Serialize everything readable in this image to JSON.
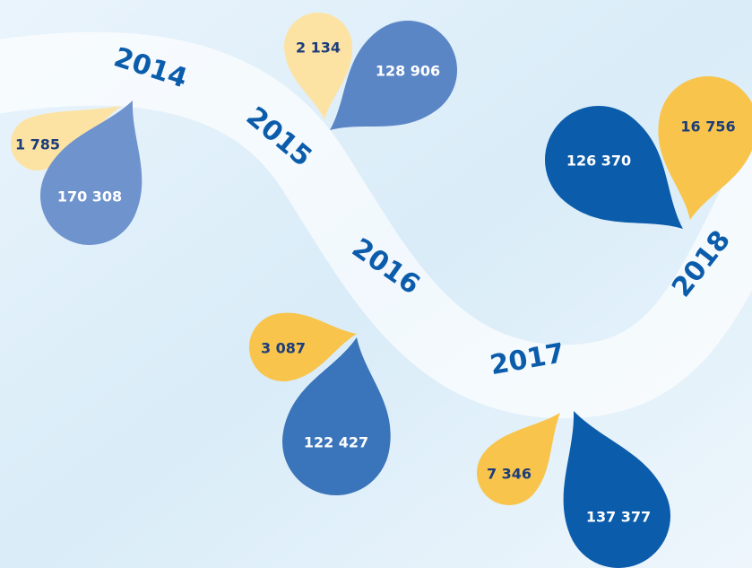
{
  "timeline": [
    {
      "year": "2014",
      "small": "1 785",
      "large": "170 308"
    },
    {
      "year": "2015",
      "small": "2 134",
      "large": "128 906"
    },
    {
      "year": "2016",
      "small": "3 087",
      "large": "122 427"
    },
    {
      "year": "2017",
      "small": "7 346",
      "large": "137 377"
    },
    {
      "year": "2018",
      "small": "16 756",
      "large": "126 370"
    }
  ]
}
